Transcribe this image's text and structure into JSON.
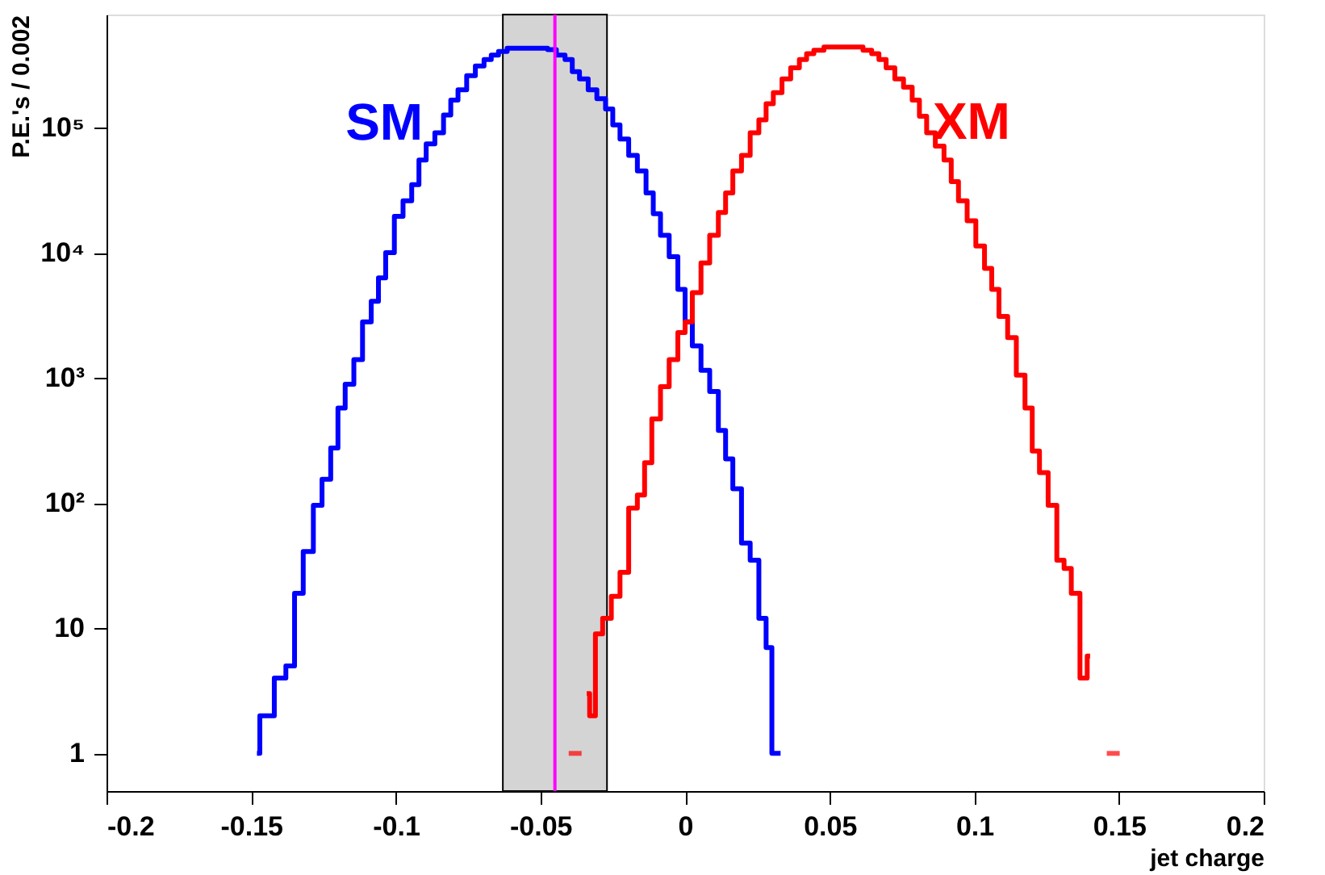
{
  "chart_data": {
    "type": "step",
    "xlabel": "jet charge",
    "ylabel": "P.E.'s / 0.002",
    "log": "y",
    "grid": false,
    "line_style": "solid",
    "marker": "none",
    "xlim": [
      -0.2,
      0.2
    ],
    "xticks": [
      -0.2,
      -0.15,
      -0.1,
      -0.05,
      0,
      0.05,
      0.1,
      0.15,
      0.2
    ],
    "ylim": [
      0.5,
      800000
    ],
    "yticks": [
      1,
      10,
      {
        "value": 100,
        "label": "10²"
      },
      {
        "value": 1000,
        "label": "10³"
      },
      {
        "value": 10000,
        "label": "10⁴"
      },
      {
        "value": 100000,
        "label": "10⁵"
      }
    ],
    "series": [
      {
        "name": "SM",
        "color": "#0000ff",
        "x": [
          -0.148,
          -0.146,
          -0.144,
          -0.14,
          -0.136,
          -0.134,
          -0.13,
          -0.127,
          -0.124,
          -0.121,
          -0.119,
          -0.116,
          -0.113,
          -0.11,
          -0.107,
          -0.105,
          -0.102,
          -0.099,
          -0.096,
          -0.093,
          -0.091,
          -0.088,
          -0.085,
          -0.082,
          -0.08,
          -0.077,
          -0.074,
          -0.071,
          -0.068,
          -0.066,
          -0.063,
          -0.06,
          -0.057,
          -0.054,
          -0.051,
          -0.049,
          -0.046,
          -0.043,
          -0.04,
          -0.038,
          -0.035,
          -0.032,
          -0.029,
          -0.026,
          -0.024,
          -0.021,
          -0.018,
          -0.015,
          -0.012,
          -0.01,
          -0.007,
          -0.004,
          -0.001,
          0.001,
          0.004,
          0.007,
          0.01,
          0.013,
          0.015,
          0.018,
          0.021,
          0.024,
          0.027,
          0.029,
          0.031,
          0.033
        ],
        "values": [
          1,
          2,
          2,
          4,
          5,
          19,
          41,
          96,
          155,
          275,
          575,
          890,
          1400,
          2800,
          4100,
          6300,
          10000,
          19500,
          26000,
          35000,
          55000,
          74000,
          91000,
          126000,
          166000,
          200000,
          260000,
          310000,
          350000,
          380000,
          405000,
          430000,
          430000,
          430000,
          430000,
          430000,
          420000,
          380000,
          350000,
          280000,
          245000,
          200000,
          170000,
          141000,
          105000,
          81000,
          60000,
          45000,
          30000,
          20500,
          13800,
          9300,
          5100,
          2800,
          1800,
          1150,
          780,
          380,
          225,
          130,
          48,
          35,
          12,
          7,
          1,
          1
        ]
      },
      {
        "name": "XM",
        "color": "#ff0000",
        "x": [
          -0.038,
          -0.036,
          -0.034,
          -0.032,
          -0.03,
          -0.027,
          -0.024,
          -0.021,
          -0.018,
          -0.015,
          -0.013,
          -0.01,
          -0.007,
          -0.004,
          -0.001,
          0.001,
          0.004,
          0.007,
          0.01,
          0.013,
          0.015,
          0.018,
          0.021,
          0.024,
          0.027,
          0.029,
          0.032,
          0.035,
          0.038,
          0.041,
          0.043,
          0.046,
          0.05,
          0.053,
          0.056,
          0.06,
          0.063,
          0.066,
          0.068,
          0.071,
          0.074,
          0.077,
          0.08,
          0.082,
          0.085,
          0.088,
          0.091,
          0.093,
          0.096,
          0.099,
          0.102,
          0.105,
          0.107,
          0.11,
          0.113,
          0.116,
          0.119,
          0.121,
          0.124,
          0.127,
          0.13,
          0.132,
          0.135,
          0.138,
          0.14,
          0.142,
          0.148
        ],
        "values": [
          1,
          null,
          3,
          2,
          9,
          12,
          18,
          28,
          91,
          116,
          210,
          470,
          850,
          1400,
          2300,
          2800,
          4800,
          8300,
          13800,
          21000,
          30000,
          45000,
          60000,
          91000,
          115000,
          155000,
          190000,
          245000,
          300000,
          350000,
          390000,
          415000,
          440000,
          440000,
          440000,
          440000,
          415000,
          390000,
          350000,
          300000,
          245000,
          210000,
          166000,
          123000,
          91000,
          71000,
          55000,
          37000,
          26000,
          18000,
          11300,
          7500,
          5100,
          3100,
          2100,
          1050,
          575,
          260,
          175,
          96,
          35,
          30,
          19,
          4,
          6,
          null,
          1
        ]
      }
    ],
    "bands": [
      {
        "axis": "x",
        "from": -0.063,
        "to": -0.027,
        "color": "#555555"
      }
    ],
    "ref_lines": [
      {
        "axis": "x",
        "value": -0.045,
        "color": "#ff00ff",
        "line_style": "solid"
      }
    ]
  }
}
